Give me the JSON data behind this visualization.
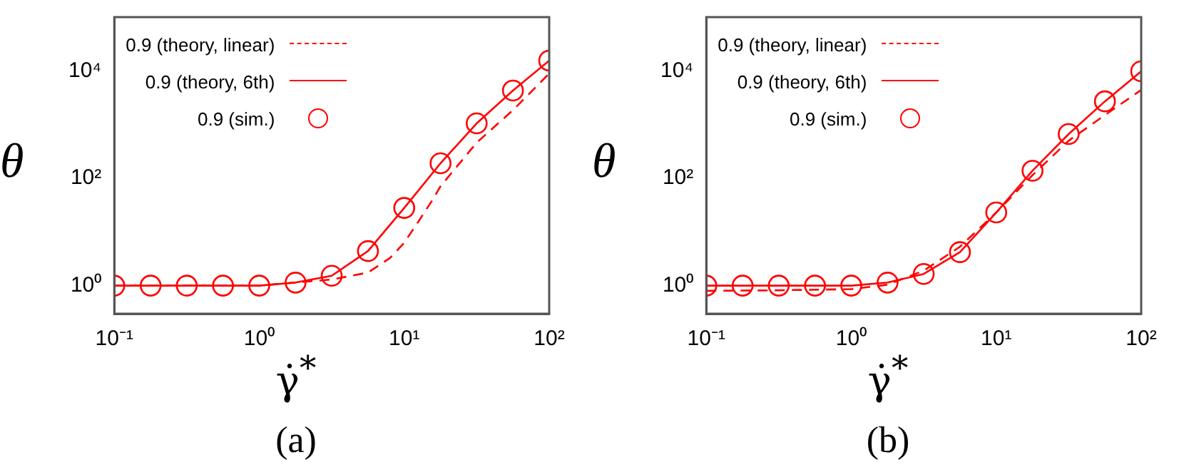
{
  "chart_data": [
    {
      "type": "line",
      "xlabel": "γ̇$^{*}$",
      "ylabel": "θ",
      "log": "xy",
      "legend": "top left",
      "grid": false,
      "annotations": [
        "(a)"
      ],
      "xlim": [
        0.1,
        100
      ],
      "ylim": [
        0.3,
        100000
      ],
      "xticks": [
        {
          "value": 0.1,
          "label": "10⁻¹"
        },
        {
          "value": 1,
          "label": "10⁰"
        },
        {
          "value": 10,
          "label": "10¹"
        },
        {
          "value": 100,
          "label": "10²"
        }
      ],
      "yticks": [
        {
          "value": 1,
          "label": "10⁰"
        },
        {
          "value": 100,
          "label": "10²"
        },
        {
          "value": 10000,
          "label": "10⁴"
        }
      ],
      "series": [
        {
          "name": "0.9 (theory, linear)",
          "line_style": "dashed",
          "marker": "none",
          "color": "#ff0000",
          "x": [
            0.1,
            0.316,
            1,
            3.16,
            5.62,
            8,
            10,
            12.6,
            15.8,
            17.8,
            31.6,
            56.2,
            100
          ],
          "values": [
            1,
            1,
            1,
            1.3,
            1.75,
            3.3,
            6.3,
            16,
            41,
            71,
            460,
            1850,
            8900
          ]
        },
        {
          "name": "0.9 (theory, 6th)",
          "line_style": "solid",
          "marker": "none",
          "color": "#ff0000",
          "x": [
            0.1,
            0.178,
            0.316,
            0.562,
            1,
            1.78,
            3.16,
            5.62,
            10,
            17.8,
            31.6,
            56.2,
            100
          ],
          "values": [
            1,
            1,
            1,
            1,
            1,
            1.14,
            1.53,
            4.4,
            28,
            190,
            1050,
            4300,
            15500
          ]
        },
        {
          "name": "0.9 (sim.)",
          "type": "scatter",
          "marker": "circle",
          "color": "#ff0000",
          "x": [
            0.1,
            0.178,
            0.316,
            0.562,
            1,
            1.78,
            3.16,
            5.62,
            10,
            17.8,
            31.6,
            56.2,
            100
          ],
          "values": [
            1,
            1,
            1,
            1,
            1,
            1.14,
            1.53,
            4.4,
            28,
            190,
            1050,
            4300,
            15500
          ]
        }
      ]
    },
    {
      "type": "line",
      "xlabel": "γ̇$^{*}$",
      "ylabel": "θ",
      "log": "xy",
      "legend": "top left",
      "grid": false,
      "annotations": [
        "(b)"
      ],
      "xlim": [
        0.1,
        100
      ],
      "ylim": [
        0.3,
        100000
      ],
      "xticks": [
        {
          "value": 0.1,
          "label": "10⁻¹"
        },
        {
          "value": 1,
          "label": "10⁰"
        },
        {
          "value": 10,
          "label": "10¹"
        },
        {
          "value": 100,
          "label": "10²"
        }
      ],
      "yticks": [
        {
          "value": 1,
          "label": "10⁰"
        },
        {
          "value": 100,
          "label": "10²"
        },
        {
          "value": 10000,
          "label": "10⁴"
        }
      ],
      "series": [
        {
          "name": "0.9 (theory, linear)",
          "line_style": "dashed",
          "marker": "none",
          "color": "#ff0000",
          "x": [
            0.1,
            0.316,
            1,
            1.78,
            3.16,
            5.62,
            10,
            17.8,
            31.6,
            56.2,
            100
          ],
          "values": [
            0.8,
            0.82,
            0.86,
            1.04,
            1.9,
            5.3,
            23,
            114,
            500,
            1500,
            4400
          ]
        },
        {
          "name": "0.9 (theory, 6th)",
          "line_style": "solid",
          "marker": "none",
          "color": "#ff0000",
          "x": [
            0.1,
            0.178,
            0.316,
            0.562,
            1,
            1.78,
            3.16,
            5.62,
            10,
            17.8,
            31.6,
            56.2,
            100
          ],
          "values": [
            1,
            1,
            1,
            1,
            1,
            1.14,
            1.65,
            4.2,
            23,
            138,
            665,
            2700,
            9800
          ]
        },
        {
          "name": "0.9 (sim.)",
          "type": "scatter",
          "marker": "circle",
          "color": "#ff0000",
          "x": [
            0.1,
            0.178,
            0.316,
            0.562,
            1,
            1.78,
            3.16,
            5.62,
            10,
            17.8,
            31.6,
            56.2,
            100
          ],
          "values": [
            1,
            1,
            1,
            1,
            1,
            1.14,
            1.65,
            4.2,
            23,
            138,
            665,
            2700,
            9800
          ]
        }
      ]
    }
  ]
}
